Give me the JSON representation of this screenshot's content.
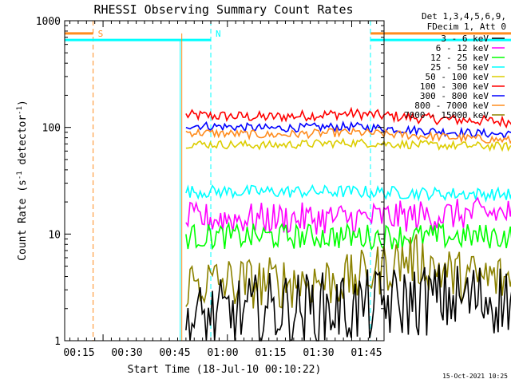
{
  "chart_data": {
    "type": "line",
    "title": "RHESSI Observing Summary Count Rates",
    "xlabel": "Start Time (18-Jul-10 00:10:22)",
    "ylabel": "Count Rate (s",
    "ylabel_sup1": "-1",
    "ylabel_mid": " detector",
    "ylabel_sup2": "-1",
    "ylabel_end": ")",
    "yscale": "log",
    "ylim": [
      1,
      1000
    ],
    "xlim_minutes": [
      10.37,
      48.9
    ],
    "y_ticks": [
      {
        "value": 1,
        "label": "1"
      },
      {
        "value": 10,
        "label": "10"
      },
      {
        "value": 100,
        "label": "100"
      },
      {
        "value": 1000,
        "label": "1000"
      }
    ],
    "x_ticks": [
      {
        "value": 15,
        "label": "00:15"
      },
      {
        "value": 30,
        "label": "00:30"
      },
      {
        "value": 45,
        "label": "00:45"
      },
      {
        "value": 60,
        "label": "01:00"
      },
      {
        "value": 75,
        "label": "01:15"
      },
      {
        "value": 90,
        "label": "01:30"
      },
      {
        "value": 105,
        "label": "01:45"
      }
    ],
    "legend_header": [
      "Det 1,3,4,5,6,9,",
      "FDecim 1, Att 0"
    ],
    "legend_placement": "right",
    "series": [
      {
        "name": "3 - 6 keV",
        "color": "#000000"
      },
      {
        "name": "6 - 12 keV",
        "color": "#ff00ff"
      },
      {
        "name": "12 - 25 keV",
        "color": "#00ff00"
      },
      {
        "name": "25 - 50 keV",
        "color": "#00ffff"
      },
      {
        "name": "50 - 100 keV",
        "color": "#dccd00"
      },
      {
        "name": "100 - 300 keV",
        "color": "#ff0000"
      },
      {
        "name": "300 - 800 keV",
        "color": "#0000ff"
      },
      {
        "name": "800 - 7000 keV",
        "color": "#ff8c1e"
      },
      {
        "name": "7000 - 15000 keV",
        "color": "#8c8200"
      }
    ],
    "traces": [
      {
        "series": "100 - 300 keV",
        "values": [
          [
            25,
            130
          ],
          [
            35,
            125
          ],
          [
            45,
            135
          ],
          [
            55,
            120
          ],
          [
            65,
            112
          ],
          [
            75,
            108
          ],
          [
            85,
            110
          ],
          [
            89,
            112
          ]
        ]
      },
      {
        "series": "300 - 800 keV",
        "values": [
          [
            25,
            105
          ],
          [
            35,
            98
          ],
          [
            45,
            102
          ],
          [
            55,
            92
          ],
          [
            65,
            85
          ],
          [
            75,
            80
          ],
          [
            85,
            78
          ],
          [
            89,
            80
          ]
        ]
      },
      {
        "series": "800 - 7000 keV",
        "values": [
          [
            25,
            90
          ],
          [
            35,
            85
          ],
          [
            45,
            90
          ],
          [
            55,
            82
          ],
          [
            65,
            75
          ],
          [
            75,
            72
          ],
          [
            85,
            71
          ],
          [
            89,
            72
          ]
        ]
      },
      {
        "series": "50 - 100 keV",
        "values": [
          [
            25,
            70
          ],
          [
            35,
            68
          ],
          [
            45,
            72
          ],
          [
            55,
            68
          ],
          [
            65,
            66
          ],
          [
            75,
            65
          ],
          [
            85,
            66
          ],
          [
            89,
            68
          ]
        ]
      },
      {
        "series": "25 - 50 keV",
        "values": [
          [
            25,
            25
          ],
          [
            35,
            25
          ],
          [
            45,
            25
          ],
          [
            55,
            24
          ],
          [
            65,
            23.5
          ],
          [
            75,
            23.5
          ],
          [
            83,
            23.5
          ],
          [
            86,
            25
          ],
          [
            88,
            28
          ],
          [
            89,
            36
          ]
        ]
      },
      {
        "series": "6 - 12 keV",
        "values": [
          [
            25,
            14
          ],
          [
            35,
            14
          ],
          [
            45,
            14
          ],
          [
            55,
            15
          ],
          [
            65,
            16
          ],
          [
            72,
            18
          ],
          [
            80,
            19
          ],
          [
            85,
            20
          ],
          [
            87,
            18
          ],
          [
            88,
            14
          ],
          [
            89,
            12
          ]
        ]
      },
      {
        "series": "12 - 25 keV",
        "values": [
          [
            25,
            9.5
          ],
          [
            35,
            9.5
          ],
          [
            45,
            9.5
          ],
          [
            55,
            9.5
          ],
          [
            65,
            9.5
          ],
          [
            75,
            9.5
          ],
          [
            85,
            9.5
          ],
          [
            89,
            9.5
          ]
        ]
      },
      {
        "series": "7000 - 15000 keV",
        "values": [
          [
            25,
            3.5
          ],
          [
            35,
            3.5
          ],
          [
            45,
            3.7
          ],
          [
            52,
            6
          ],
          [
            58,
            4
          ],
          [
            65,
            3.7
          ],
          [
            75,
            3.7
          ],
          [
            85,
            3.8
          ],
          [
            89,
            4
          ]
        ]
      },
      {
        "series": "3 - 6 keV",
        "values": [
          [
            25,
            1.5
          ],
          [
            35,
            2
          ],
          [
            45,
            2
          ],
          [
            55,
            2.5
          ],
          [
            65,
            2.5
          ],
          [
            70,
            4
          ],
          [
            74,
            8
          ],
          [
            78,
            12
          ],
          [
            81,
            18
          ],
          [
            85,
            20
          ],
          [
            88,
            20
          ],
          [
            89,
            12
          ]
        ]
      }
    ],
    "markers": [
      {
        "label": "S",
        "minute": 13.8,
        "color": "#ff8c1e",
        "band_y": 760,
        "band_from": 10.37,
        "band_to": 13.8,
        "right_band_from": 91,
        "right_band_to": 105.6,
        "right_marker": 105.6
      },
      {
        "label": "N",
        "minute": 28.0,
        "color": "#00ffff",
        "band_y": 660,
        "band_from": 10.37,
        "band_to": 28.0,
        "right_band_from": 89.5,
        "right_band_to": 105.6,
        "right_marker": 105.6
      }
    ],
    "cyan_solid_lines": [
      24.5,
      89.5
    ],
    "orange_solid_lines": [
      24.5,
      91
    ],
    "grid": false
  },
  "timestamp": "15-Oct-2021 10:25"
}
